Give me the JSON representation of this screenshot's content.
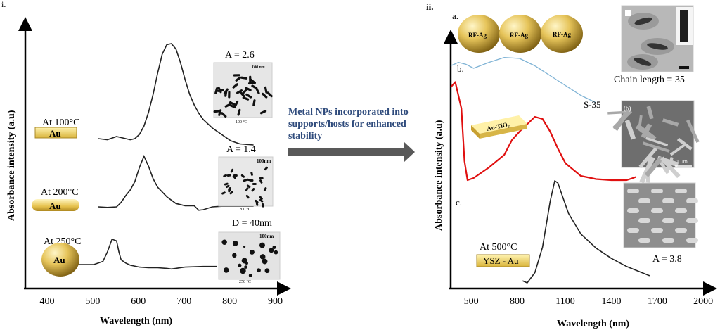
{
  "panel_labels": {
    "left": "i.",
    "right": "ii."
  },
  "arrow_text": [
    "Metal NPs incorporated into",
    "supports/hosts for enhanced",
    "stability"
  ],
  "colors": {
    "gold_light": "#f7e79a",
    "gold_dark": "#b8962a",
    "arrow": "#595959",
    "blue_text": "#2f4b7c",
    "curve_a": "#7fb3d5",
    "curve_b": "#e01010",
    "curve_c": "#222222"
  },
  "chart_data": [
    {
      "type": "line",
      "panel": "i",
      "xlabel": "Wavelength (nm)",
      "ylabel": "Absorbance intensity (a.u)",
      "xlim": [
        350,
        920
      ],
      "xticks": [
        400,
        500,
        600,
        700,
        800,
        900
      ],
      "grid": false,
      "series": [
        {
          "name": "At 100°C",
          "particle": "Au",
          "shape": "rod",
          "annotation": "A = 2.6",
          "image_caption": "100 °C",
          "scale_bar": "100 nm",
          "x": [
            510,
            530,
            550,
            570,
            580,
            590,
            600,
            610,
            620,
            630,
            640,
            650,
            660,
            670,
            680,
            690,
            700,
            710,
            720,
            730,
            740,
            760,
            780,
            800,
            820,
            850
          ],
          "y": [
            0.1,
            0.09,
            0.12,
            0.1,
            0.09,
            0.1,
            0.14,
            0.22,
            0.35,
            0.52,
            0.72,
            0.9,
            0.99,
            1.0,
            0.95,
            0.82,
            0.66,
            0.52,
            0.42,
            0.34,
            0.28,
            0.2,
            0.14,
            0.08,
            0.05,
            0.04
          ]
        },
        {
          "name": "At 200°C",
          "particle": "Au",
          "shape": "ellipsoid",
          "annotation": "A = 1.4",
          "image_caption": "200 °C",
          "scale_bar": "100nm",
          "x": [
            510,
            530,
            550,
            560,
            570,
            580,
            590,
            600,
            610,
            620,
            630,
            640,
            660,
            680,
            700,
            720,
            730,
            740,
            760,
            780,
            800,
            850
          ],
          "y": [
            0.1,
            0.09,
            0.1,
            0.18,
            0.3,
            0.4,
            0.55,
            0.8,
            1.0,
            0.82,
            0.6,
            0.45,
            0.28,
            0.16,
            0.12,
            0.12,
            0.04,
            0.05,
            0.1,
            0.11,
            0.11,
            0.11
          ]
        },
        {
          "name": "At 250°C",
          "particle": "Au",
          "shape": "sphere",
          "annotation": "D = 40nm",
          "image_caption": "250 °C",
          "scale_bar": "100nm",
          "x": [
            450,
            500,
            520,
            530,
            540,
            550,
            555,
            560,
            570,
            580,
            600,
            620,
            640,
            660,
            670,
            680,
            700,
            740,
            770
          ],
          "y": [
            0.2,
            0.2,
            0.3,
            0.6,
            1.0,
            0.95,
            0.6,
            0.35,
            0.25,
            0.18,
            0.12,
            0.1,
            0.1,
            0.08,
            0.06,
            0.08,
            0.12,
            0.14,
            0.14
          ]
        }
      ]
    },
    {
      "type": "line",
      "panel": "ii",
      "xlabel": "Wavelength (nm)",
      "ylabel": "Absorbance intensity (a.u)",
      "xlim": [
        350,
        2050
      ],
      "xticks": [
        500,
        800,
        1100,
        1400,
        1700,
        2000
      ],
      "grid": false,
      "series": [
        {
          "name": "a.",
          "sample": "RF-Ag",
          "label": "S-35",
          "annotation": "Chain length = 35",
          "x": [
            350,
            400,
            450,
            500,
            600,
            700,
            800,
            900,
            1000,
            1100,
            1200,
            1300
          ],
          "y": [
            0.55,
            0.62,
            0.58,
            0.5,
            0.62,
            0.72,
            0.7,
            0.55,
            0.35,
            0.15,
            -0.05,
            -0.2
          ]
        },
        {
          "name": "b.",
          "sample": "Au-TiO₂",
          "x": [
            350,
            380,
            420,
            440,
            460,
            500,
            600,
            700,
            750,
            800,
            850,
            900,
            950,
            1000,
            1050,
            1100,
            1200,
            1300,
            1400,
            1500,
            1560
          ],
          "y": [
            0.9,
            0.95,
            0.7,
            0.2,
            0.02,
            0.04,
            0.14,
            0.26,
            0.4,
            0.48,
            0.55,
            0.62,
            0.6,
            0.48,
            0.32,
            0.18,
            0.06,
            0.03,
            0.02,
            0.02,
            0.05
          ]
        },
        {
          "name": "c.",
          "sample": "YSZ - Au",
          "temperature": "At 500°C",
          "annotation": "A = 3.8",
          "x": [
            820,
            850,
            900,
            950,
            1000,
            1030,
            1050,
            1080,
            1120,
            1200,
            1300,
            1400,
            1500,
            1650
          ],
          "y": [
            0.02,
            0.0,
            0.1,
            0.35,
            0.8,
            1.0,
            0.98,
            0.85,
            0.68,
            0.48,
            0.34,
            0.24,
            0.16,
            0.07
          ]
        }
      ]
    }
  ],
  "labels": {
    "left_scalebar_1": "100 nm",
    "right_scalebar_b": "1 μm",
    "right_image_b_tag": "(b)"
  }
}
